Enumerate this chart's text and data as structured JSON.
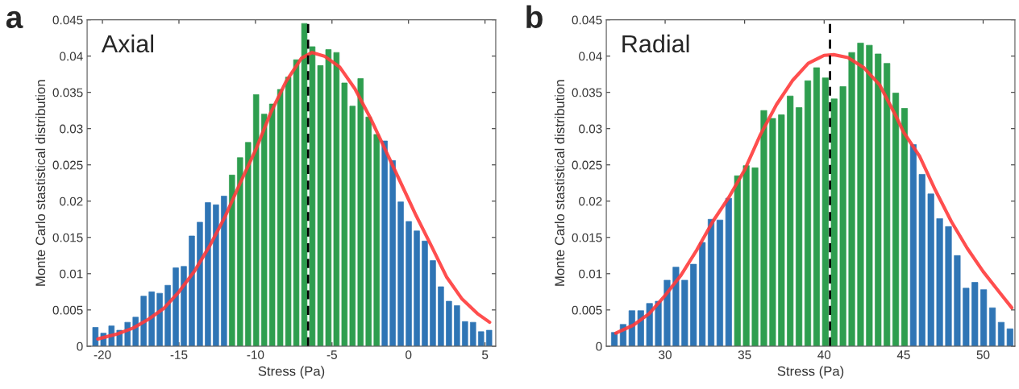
{
  "chart_data": [
    {
      "type": "histogram",
      "title": "a",
      "annotations": [
        "Axial"
      ],
      "xlabel": "Stress (Pa)",
      "ylabel": "Monte Carlo stastistical distribution",
      "bins": [
        -20.72,
        -20.195,
        -19.67,
        -19.145,
        -18.62,
        -18.095,
        -17.57,
        -17.045,
        -16.52,
        -15.995,
        -15.47,
        -14.945,
        -14.42,
        -13.895,
        -13.37,
        -12.845,
        -12.32,
        -11.795,
        -11.27,
        -10.745,
        -10.22,
        -9.695,
        -9.17,
        -8.645,
        -8.12,
        -7.595,
        -7.07,
        -6.545,
        -6.02,
        -5.495,
        -4.97,
        -4.445,
        -3.92,
        -3.395,
        -2.87,
        -2.345,
        -1.82,
        -1.295,
        -0.77,
        -0.245,
        0.28,
        0.805,
        1.33,
        1.855,
        2.38,
        2.905,
        3.43,
        3.955,
        4.48,
        5.005,
        5.53
      ],
      "values": [
        0.0026,
        0.0018,
        0.0028,
        0.0022,
        0.0033,
        0.004,
        0.0069,
        0.0075,
        0.0073,
        0.0084,
        0.0108,
        0.011,
        0.0152,
        0.0171,
        0.0198,
        0.0195,
        0.0207,
        0.0236,
        0.026,
        0.0281,
        0.0347,
        0.032,
        0.0334,
        0.0354,
        0.0371,
        0.0395,
        0.0445,
        0.0413,
        0.0387,
        0.0409,
        0.0405,
        0.0363,
        0.0331,
        0.0369,
        0.0316,
        0.0292,
        0.0283,
        0.0256,
        0.0199,
        0.0172,
        0.0159,
        0.0145,
        0.0118,
        0.0082,
        0.0062,
        0.0056,
        0.0034,
        0.0033,
        0.002,
        0.0022
      ],
      "colors": [
        "#2f75b5",
        "#2f75b5",
        "#2f75b5",
        "#2f75b5",
        "#2f75b5",
        "#2f75b5",
        "#2f75b5",
        "#2f75b5",
        "#2f75b5",
        "#2f75b5",
        "#2f75b5",
        "#2f75b5",
        "#2f75b5",
        "#2f75b5",
        "#2f75b5",
        "#2f75b5",
        "#2f75b5",
        "#2e9e4f",
        "#2e9e4f",
        "#2e9e4f",
        "#2e9e4f",
        "#2e9e4f",
        "#2e9e4f",
        "#2e9e4f",
        "#2e9e4f",
        "#2e9e4f",
        "#2e9e4f",
        "#2e9e4f",
        "#2e9e4f",
        "#2e9e4f",
        "#2e9e4f",
        "#2e9e4f",
        "#2e9e4f",
        "#2e9e4f",
        "#2e9e4f",
        "#2e9e4f",
        "#2f75b5",
        "#2f75b5",
        "#2f75b5",
        "#2f75b5",
        "#2f75b5",
        "#2f75b5",
        "#2f75b5",
        "#2f75b5",
        "#2f75b5",
        "#2f75b5",
        "#2f75b5",
        "#2f75b5",
        "#2f75b5",
        "#2f75b5"
      ],
      "series": [
        {
          "type": "line",
          "color": "#ff3b3b",
          "x": [
            -20.3,
            -19,
            -18,
            -17,
            -16,
            -15,
            -14,
            -13,
            -12,
            -11,
            -10,
            -9,
            -8,
            -7,
            -6.3,
            -5.5,
            -4.5,
            -3.5,
            -2.5,
            -1.5,
            -0.5,
            0.5,
            1.5,
            2.5,
            3.5,
            4.5,
            5.3
          ],
          "values": [
            0.001,
            0.0017,
            0.0025,
            0.0037,
            0.0052,
            0.0075,
            0.0103,
            0.0138,
            0.0178,
            0.0225,
            0.027,
            0.0322,
            0.0365,
            0.0397,
            0.0405,
            0.04,
            0.0385,
            0.0355,
            0.0315,
            0.027,
            0.0225,
            0.018,
            0.0138,
            0.0095,
            0.0065,
            0.0045,
            0.0033
          ]
        }
      ],
      "ref_lines": [
        {
          "axis": "x",
          "value": -6.56,
          "color": "#000000",
          "line_style": "dashed"
        }
      ],
      "xlim": [
        -21,
        5.7
      ],
      "xticks": [
        -20,
        -15,
        -10,
        -5,
        0,
        5
      ],
      "ylim": [
        0,
        0.045
      ],
      "yticks": [
        0,
        0.005,
        0.01,
        0.015,
        0.02,
        0.025,
        0.03,
        0.035,
        0.04,
        0.045
      ]
    },
    {
      "type": "histogram",
      "title": "b",
      "annotations": [
        "Radial"
      ],
      "xlabel": "Stress (Pa)",
      "ylabel": "Monte Carlo stastistical distribution",
      "bins": [
        26.53,
        27.083,
        27.636,
        28.189,
        28.742,
        29.295,
        29.848,
        30.401,
        30.954,
        31.507,
        32.06,
        32.613,
        33.166,
        33.719,
        34.272,
        34.825,
        35.378,
        35.931,
        36.484,
        37.037,
        37.59,
        38.143,
        38.696,
        39.249,
        39.802,
        40.355,
        40.908,
        41.461,
        42.014,
        42.567,
        43.12,
        43.673,
        44.226,
        44.779,
        45.332,
        45.885,
        46.438,
        46.991,
        47.544,
        48.097,
        48.65,
        49.203,
        49.756,
        50.309,
        50.862,
        51.415,
        51.968
      ],
      "values": [
        0.0019,
        0.003,
        0.0049,
        0.0049,
        0.0059,
        0.0062,
        0.0091,
        0.0109,
        0.0091,
        0.0113,
        0.0143,
        0.0175,
        0.0174,
        0.0204,
        0.0235,
        0.0249,
        0.0246,
        0.0325,
        0.0314,
        0.0319,
        0.0345,
        0.0329,
        0.0366,
        0.0384,
        0.037,
        0.0341,
        0.0358,
        0.0405,
        0.0418,
        0.0415,
        0.0403,
        0.039,
        0.0349,
        0.0328,
        0.0278,
        0.0237,
        0.021,
        0.0176,
        0.0165,
        0.0125,
        0.008,
        0.0088,
        0.0078,
        0.0053,
        0.0033,
        0.0024
      ],
      "colors": [
        "#2f75b5",
        "#2f75b5",
        "#2f75b5",
        "#2f75b5",
        "#2f75b5",
        "#2f75b5",
        "#2f75b5",
        "#2f75b5",
        "#2f75b5",
        "#2f75b5",
        "#2f75b5",
        "#2f75b5",
        "#2f75b5",
        "#2f75b5",
        "#2e9e4f",
        "#2e9e4f",
        "#2e9e4f",
        "#2e9e4f",
        "#2e9e4f",
        "#2e9e4f",
        "#2e9e4f",
        "#2e9e4f",
        "#2e9e4f",
        "#2e9e4f",
        "#2e9e4f",
        "#2e9e4f",
        "#2e9e4f",
        "#2e9e4f",
        "#2e9e4f",
        "#2e9e4f",
        "#2e9e4f",
        "#2e9e4f",
        "#2e9e4f",
        "#2e9e4f",
        "#2f75b5",
        "#2f75b5",
        "#2f75b5",
        "#2f75b5",
        "#2f75b5",
        "#2f75b5",
        "#2f75b5",
        "#2f75b5",
        "#2f75b5",
        "#2f75b5",
        "#2f75b5",
        "#2f75b5"
      ],
      "series": [
        {
          "type": "line",
          "color": "#ff3b3b",
          "x": [
            26.9,
            28,
            29,
            30,
            31,
            32,
            33,
            34,
            35,
            36,
            37,
            38,
            39,
            40,
            40.6,
            41.5,
            42.5,
            43.5,
            44.5,
            45,
            46,
            47,
            48,
            49,
            50,
            51,
            51.8
          ],
          "values": [
            0.0018,
            0.0029,
            0.0045,
            0.007,
            0.0098,
            0.0133,
            0.0172,
            0.0205,
            0.0243,
            0.0292,
            0.0333,
            0.0366,
            0.039,
            0.0401,
            0.0402,
            0.0398,
            0.0384,
            0.036,
            0.0318,
            0.0295,
            0.0262,
            0.0215,
            0.0172,
            0.0135,
            0.0103,
            0.0075,
            0.0053
          ]
        }
      ],
      "ref_lines": [
        {
          "axis": "x",
          "value": 40.37,
          "color": "#000000",
          "line_style": "dashed"
        }
      ],
      "xlim": [
        26.3,
        52.0
      ],
      "xticks": [
        30,
        35,
        40,
        45,
        50
      ],
      "ylim": [
        0,
        0.045
      ],
      "yticks": [
        0,
        0.005,
        0.01,
        0.015,
        0.02,
        0.025,
        0.03,
        0.035,
        0.04,
        0.045
      ]
    }
  ]
}
